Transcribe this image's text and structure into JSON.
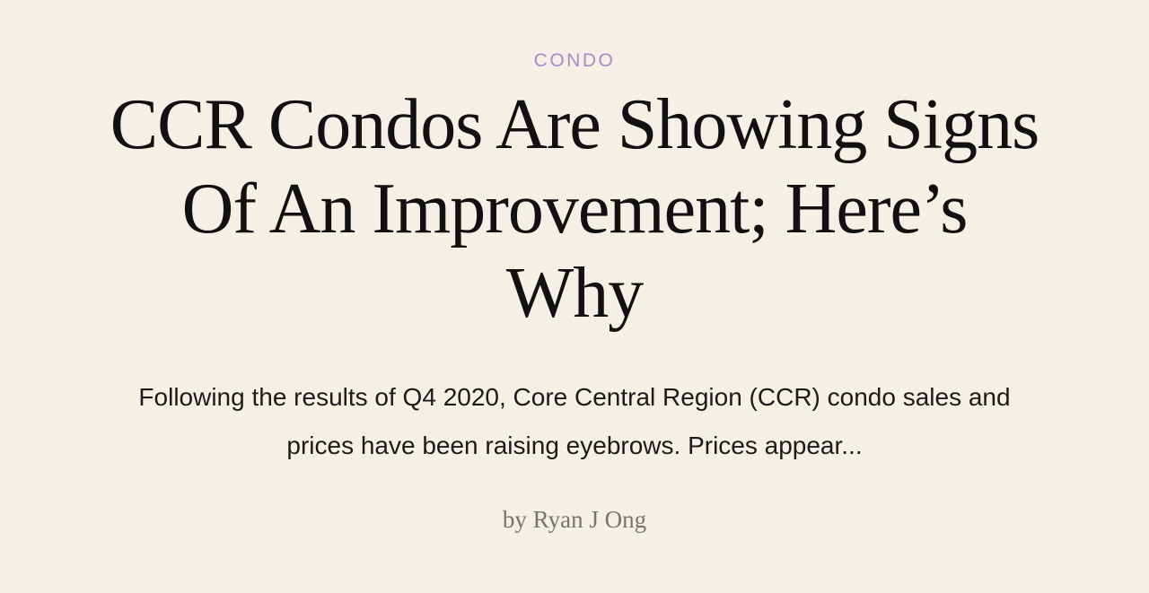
{
  "article": {
    "category": "CONDO",
    "title": "CCR Condos Are Showing Signs Of An Improvement; Here’s Why",
    "excerpt": "Following the results of Q4 2020, Core Central Region (CCR) condo sales and prices have been raising eyebrows. Prices appear...",
    "byline_prefix": "by",
    "author": "Ryan J Ong"
  },
  "colors": {
    "background": "#f4f0e6",
    "category": "#a98bc6",
    "title": "#111111",
    "byline": "#777470"
  }
}
